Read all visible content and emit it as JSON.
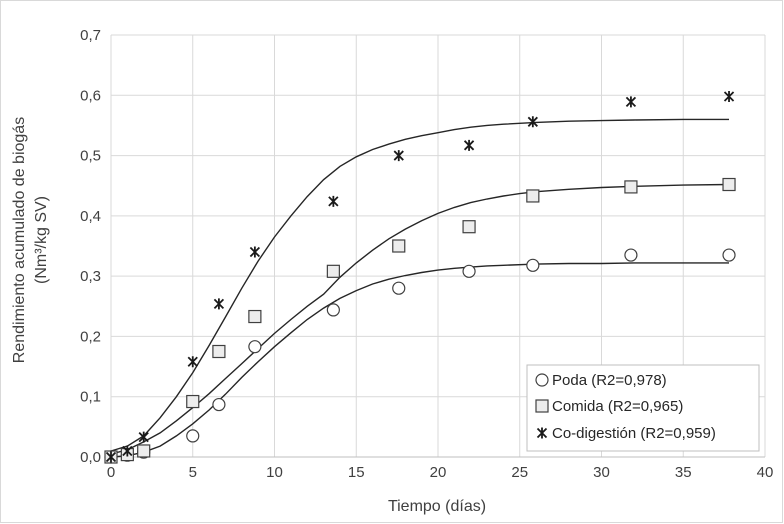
{
  "chart_data": {
    "type": "scatter",
    "xlabel": "Tiempo (días)",
    "ylabel_line1": "Rendimiento acumulado de biogás",
    "ylabel_line2": "(Nm³/kg SV)",
    "xlim": [
      0,
      40
    ],
    "ylim": [
      0,
      0.7
    ],
    "x_ticks": [
      0,
      5,
      10,
      15,
      20,
      25,
      30,
      35,
      40
    ],
    "x_tick_labels": [
      "0",
      "5",
      "10",
      "15",
      "20",
      "25",
      "30",
      "35",
      "40"
    ],
    "y_ticks": [
      0,
      0.1,
      0.2,
      0.3,
      0.4,
      0.5,
      0.6,
      0.7
    ],
    "y_tick_labels": [
      "0,0",
      "0,1",
      "0,2",
      "0,3",
      "0,4",
      "0,5",
      "0,6",
      "0,7"
    ],
    "grid": true,
    "legend_position": "bottom-right",
    "series": [
      {
        "name": "Poda (R2=0,978)",
        "marker": "circle",
        "color": "#404040",
        "points": [
          [
            0,
            0.0
          ],
          [
            1,
            0.003
          ],
          [
            2,
            0.008
          ],
          [
            5,
            0.035
          ],
          [
            6.6,
            0.087
          ],
          [
            8.8,
            0.183
          ],
          [
            13.6,
            0.244
          ],
          [
            17.6,
            0.28
          ],
          [
            21.9,
            0.308
          ],
          [
            25.8,
            0.318
          ],
          [
            31.8,
            0.335
          ],
          [
            37.8,
            0.335
          ]
        ],
        "fit": [
          [
            0,
            0.0
          ],
          [
            1,
            0.002
          ],
          [
            2,
            0.008
          ],
          [
            3,
            0.018
          ],
          [
            4,
            0.035
          ],
          [
            5,
            0.055
          ],
          [
            6,
            0.078
          ],
          [
            7,
            0.104
          ],
          [
            8,
            0.132
          ],
          [
            9,
            0.158
          ],
          [
            10,
            0.183
          ],
          [
            11,
            0.206
          ],
          [
            12,
            0.228
          ],
          [
            13,
            0.247
          ],
          [
            14,
            0.263
          ],
          [
            15,
            0.276
          ],
          [
            16,
            0.287
          ],
          [
            17,
            0.295
          ],
          [
            18,
            0.301
          ],
          [
            19,
            0.306
          ],
          [
            20,
            0.31
          ],
          [
            21,
            0.313
          ],
          [
            22,
            0.315
          ],
          [
            23,
            0.317
          ],
          [
            24,
            0.318
          ],
          [
            26,
            0.32
          ],
          [
            28,
            0.321
          ],
          [
            30,
            0.321
          ],
          [
            32,
            0.322
          ],
          [
            35,
            0.322
          ],
          [
            37.8,
            0.322
          ]
        ]
      },
      {
        "name": "Comida (R2=0,965)",
        "marker": "square",
        "color": "#404040",
        "points": [
          [
            0,
            0.0
          ],
          [
            1,
            0.004
          ],
          [
            2,
            0.01
          ],
          [
            5,
            0.092
          ],
          [
            6.6,
            0.175
          ],
          [
            8.8,
            0.233
          ],
          [
            13.6,
            0.308
          ],
          [
            17.6,
            0.35
          ],
          [
            21.9,
            0.382
          ],
          [
            25.8,
            0.433
          ],
          [
            31.8,
            0.448
          ],
          [
            37.8,
            0.452
          ]
        ],
        "fit": [
          [
            0,
            0.005
          ],
          [
            1,
            0.012
          ],
          [
            2,
            0.025
          ],
          [
            3,
            0.04
          ],
          [
            4,
            0.06
          ],
          [
            5,
            0.082
          ],
          [
            6,
            0.105
          ],
          [
            7,
            0.13
          ],
          [
            8,
            0.155
          ],
          [
            9,
            0.18
          ],
          [
            10,
            0.205
          ],
          [
            11,
            0.228
          ],
          [
            12,
            0.25
          ],
          [
            13,
            0.27
          ],
          [
            14,
            0.298
          ],
          [
            15,
            0.322
          ],
          [
            16,
            0.343
          ],
          [
            17,
            0.362
          ],
          [
            18,
            0.378
          ],
          [
            19,
            0.392
          ],
          [
            20,
            0.404
          ],
          [
            21,
            0.414
          ],
          [
            22,
            0.422
          ],
          [
            23,
            0.428
          ],
          [
            24,
            0.433
          ],
          [
            25,
            0.437
          ],
          [
            26,
            0.44
          ],
          [
            28,
            0.444
          ],
          [
            30,
            0.447
          ],
          [
            32,
            0.449
          ],
          [
            35,
            0.451
          ],
          [
            37.8,
            0.452
          ]
        ]
      },
      {
        "name": "Co-digestión (R2=0,959)",
        "marker": "asterisk",
        "color": "#404040",
        "points": [
          [
            0,
            0.0
          ],
          [
            1,
            0.01
          ],
          [
            2,
            0.033
          ],
          [
            5,
            0.158
          ],
          [
            6.6,
            0.254
          ],
          [
            8.8,
            0.34
          ],
          [
            13.6,
            0.424
          ],
          [
            17.6,
            0.5
          ],
          [
            21.9,
            0.517
          ],
          [
            25.8,
            0.556
          ],
          [
            31.8,
            0.589
          ],
          [
            37.8,
            0.598
          ]
        ],
        "fit": [
          [
            0,
            0.01
          ],
          [
            1,
            0.018
          ],
          [
            2,
            0.035
          ],
          [
            3,
            0.065
          ],
          [
            4,
            0.1
          ],
          [
            5,
            0.14
          ],
          [
            6,
            0.185
          ],
          [
            7,
            0.232
          ],
          [
            8,
            0.28
          ],
          [
            9,
            0.325
          ],
          [
            10,
            0.365
          ],
          [
            11,
            0.4
          ],
          [
            12,
            0.432
          ],
          [
            13,
            0.46
          ],
          [
            14,
            0.482
          ],
          [
            15,
            0.498
          ],
          [
            16,
            0.51
          ],
          [
            17,
            0.519
          ],
          [
            18,
            0.527
          ],
          [
            19,
            0.533
          ],
          [
            20,
            0.538
          ],
          [
            21,
            0.543
          ],
          [
            22,
            0.547
          ],
          [
            23,
            0.55
          ],
          [
            24,
            0.552
          ],
          [
            26,
            0.555
          ],
          [
            28,
            0.557
          ],
          [
            30,
            0.558
          ],
          [
            32,
            0.559
          ],
          [
            35,
            0.56
          ],
          [
            37.8,
            0.56
          ]
        ]
      }
    ]
  }
}
